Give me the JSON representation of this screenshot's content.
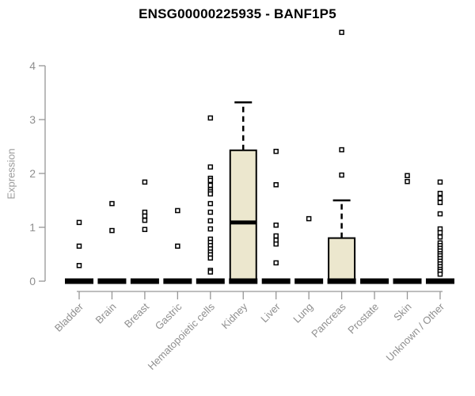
{
  "title": "ENSG00000225935 - BANF1P5",
  "colors": {
    "box_fill": "#ece7ce",
    "box_border": "#000000",
    "median": "#000000",
    "point_border": "#000000",
    "point_fill": "#ffffff",
    "axis": "#969696",
    "tick_label": "#8f8f8f",
    "title": "#000000"
  },
  "chart_data": {
    "type": "boxplot",
    "title": "ENSG00000225935 - BANF1P5",
    "xlabel": "",
    "ylabel": "Expression",
    "ylim": [
      0,
      4
    ],
    "yticks": [
      0,
      1,
      2,
      3,
      4
    ],
    "grid": false,
    "legend": false,
    "categories": [
      "Bladder",
      "Brain",
      "Breast",
      "Gastric",
      "Hematopoietic cells",
      "Kidney",
      "Liver",
      "Lung",
      "Pancreas",
      "Prostate",
      "Skin",
      "Unknown / Other"
    ],
    "series": [
      {
        "name": "Bladder",
        "box": {
          "low": 0,
          "q1": 0,
          "median": 0,
          "q3": 0,
          "high": 0
        },
        "points": [
          1.09,
          0.65,
          0.29
        ]
      },
      {
        "name": "Brain",
        "box": {
          "low": 0,
          "q1": 0,
          "median": 0,
          "q3": 0,
          "high": 0
        },
        "points": [
          1.44,
          0.94
        ]
      },
      {
        "name": "Breast",
        "box": {
          "low": 0,
          "q1": 0,
          "median": 0,
          "q3": 0,
          "high": 0
        },
        "points": [
          1.84,
          1.28,
          1.21,
          1.13,
          0.96
        ]
      },
      {
        "name": "Gastric",
        "box": {
          "low": 0,
          "q1": 0,
          "median": 0,
          "q3": 0,
          "high": 0
        },
        "points": [
          1.31,
          0.65
        ]
      },
      {
        "name": "Hematopoietic cells",
        "box": {
          "low": 0,
          "q1": 0,
          "median": 0,
          "q3": 0,
          "high": 0
        },
        "points": [
          3.03,
          2.12,
          1.91,
          1.87,
          1.78,
          1.7,
          1.66,
          1.62,
          1.44,
          1.28,
          1.12,
          0.97,
          0.78,
          0.72,
          0.66,
          0.6,
          0.54,
          0.49,
          0.43,
          0.2,
          0.17
        ]
      },
      {
        "name": "Kidney",
        "box": {
          "low": 0,
          "q1": 0,
          "median": 1.09,
          "q3": 2.43,
          "high": 3.32
        },
        "points": []
      },
      {
        "name": "Liver",
        "box": {
          "low": 0,
          "q1": 0,
          "median": 0,
          "q3": 0,
          "high": 0
        },
        "points": [
          2.41,
          1.79,
          1.04,
          0.84,
          0.76,
          0.69,
          0.34
        ]
      },
      {
        "name": "Lung",
        "box": {
          "low": 0,
          "q1": 0,
          "median": 0,
          "q3": 0,
          "high": 0
        },
        "points": [
          1.16
        ]
      },
      {
        "name": "Pancreas",
        "box": {
          "low": 0,
          "q1": 0,
          "median": 0,
          "q3": 0.8,
          "high": 1.5
        },
        "points": [
          4.62,
          2.44,
          1.97
        ]
      },
      {
        "name": "Prostate",
        "box": {
          "low": 0,
          "q1": 0,
          "median": 0,
          "q3": 0,
          "high": 0
        },
        "points": []
      },
      {
        "name": "Skin",
        "box": {
          "low": 0,
          "q1": 0,
          "median": 0,
          "q3": 0,
          "high": 0
        },
        "points": [
          1.96,
          1.85
        ]
      },
      {
        "name": "Unknown / Other",
        "box": {
          "low": 0,
          "q1": 0,
          "median": 0,
          "q3": 0,
          "high": 0
        },
        "points": [
          1.84,
          1.63,
          1.54,
          1.46,
          1.25,
          0.97,
          0.9,
          0.82,
          0.71,
          0.66,
          0.61,
          0.56,
          0.51,
          0.47,
          0.42,
          0.37,
          0.32,
          0.27,
          0.22,
          0.18,
          0.13
        ]
      }
    ]
  }
}
